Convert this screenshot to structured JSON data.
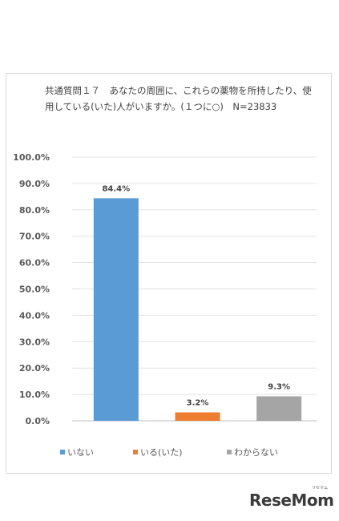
{
  "chart_data": {
    "type": "bar",
    "title": "共通質問１７　あなたの周囲に、これらの薬物を所持したり、使用している(いた)人がいますか。(１つに○)　N=23833",
    "categories": [
      "いない",
      "いる(いた)",
      "わからない"
    ],
    "values": [
      84.4,
      3.2,
      9.3
    ],
    "value_labels": [
      "84.4%",
      "3.2%",
      "9.3%"
    ],
    "colors": [
      "#5b9bd5",
      "#ed7d31",
      "#a5a5a5"
    ],
    "ylim": [
      0,
      100
    ],
    "y_ticks": [
      "0.0%",
      "10.0%",
      "20.0%",
      "30.0%",
      "40.0%",
      "50.0%",
      "60.0%",
      "70.0%",
      "80.0%",
      "90.0%",
      "100.0%"
    ],
    "grid": true,
    "legend_position": "bottom"
  },
  "brand": {
    "logo_text": "ReseMom",
    "logo_ruby": "リセマム"
  }
}
